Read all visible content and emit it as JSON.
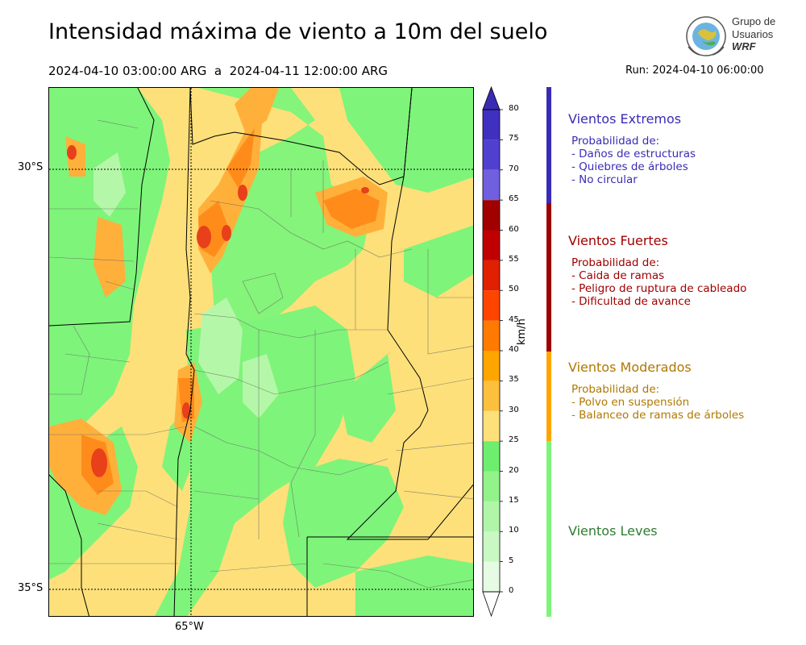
{
  "header": {
    "title": "Intensidad máxima de viento a 10m del suelo",
    "period": "2024-04-10 03:00:00 ARG  a  2024-04-11 12:00:00 ARG",
    "run": "Run: 2024-04-10 06:00:00"
  },
  "logo": {
    "line1": "Grupo de",
    "line2": "Usuarios",
    "line3": "WRF"
  },
  "map": {
    "lat_labels": [
      "30°S",
      "35°S"
    ],
    "lon_labels": [
      "65°W"
    ],
    "colors": {
      "light_green": "#7ef47a",
      "pale_green": "#b5f7a8",
      "yellow": "#fde07a",
      "orange": "#ffb03b",
      "dark_orange": "#ff8c1a",
      "red": "#e8401a"
    }
  },
  "colorbar": {
    "unit": "km/h",
    "ticks": [
      "80",
      "75",
      "70",
      "65",
      "60",
      "55",
      "50",
      "45",
      "40",
      "35",
      "30",
      "25",
      "20",
      "15",
      "10",
      "5",
      "0"
    ],
    "colors": [
      "#ffffff",
      "#e5fbe3",
      "#c9f8c3",
      "#b1f6a8",
      "#93f38b",
      "#6eee6e",
      "#fde07a",
      "#fdc03c",
      "#ffa500",
      "#ff7a00",
      "#ff4400",
      "#e02000",
      "#c00000",
      "#a00000",
      "#7060e0",
      "#5040d0",
      "#4030c0",
      "#3a2bb5"
    ]
  },
  "categories": [
    {
      "title": "Vientos Extremos",
      "color": "#3a2bb5",
      "subtitle": "Probabilidad de:",
      "items": [
        "- Daños de estructuras",
        "- Quiebres de árboles",
        "- No circular"
      ]
    },
    {
      "title": "Vientos Fuertes",
      "color": "#a00000",
      "subtitle": "Probabilidad de:",
      "items": [
        "- Caida de ramas",
        "- Peligro de ruptura de cableado",
        "- Dificultad de avance"
      ]
    },
    {
      "title": "Vientos Moderados",
      "color": "#b07800",
      "subtitle": "Probabilidad de:",
      "items": [
        "- Polvo en suspensión",
        "- Balanceo de ramas de árboles"
      ]
    },
    {
      "title": "Vientos Leves",
      "color": "#2e7d32"
    }
  ]
}
